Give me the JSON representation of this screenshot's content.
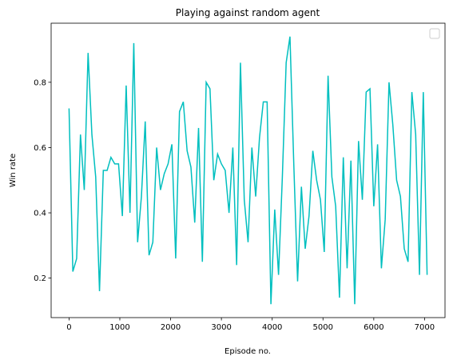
{
  "chart_data": {
    "type": "line",
    "title": "Playing against random agent",
    "xlabel": "Episode no.",
    "ylabel": "Win rate",
    "x": [
      0,
      75,
      150,
      225,
      300,
      375,
      450,
      525,
      600,
      675,
      750,
      825,
      900,
      975,
      1050,
      1125,
      1200,
      1275,
      1350,
      1425,
      1500,
      1575,
      1650,
      1725,
      1800,
      1875,
      1950,
      2025,
      2100,
      2175,
      2250,
      2325,
      2400,
      2475,
      2550,
      2625,
      2700,
      2775,
      2850,
      2925,
      3000,
      3075,
      3150,
      3225,
      3300,
      3375,
      3450,
      3525,
      3600,
      3675,
      3750,
      3825,
      3900,
      3975,
      4050,
      4125,
      4200,
      4275,
      4350,
      4425,
      4500,
      4575,
      4650,
      4725,
      4800,
      4875,
      4950,
      5025,
      5100,
      5175,
      5250,
      5325,
      5400,
      5475,
      5550,
      5625,
      5700,
      5775,
      5850,
      5925,
      6000,
      6075,
      6150,
      6225,
      6300,
      6375,
      6450,
      6525,
      6600,
      6675,
      6750,
      6825,
      6900,
      6975,
      7050
    ],
    "series": [
      {
        "color": "#00bfbf",
        "values": [
          0.72,
          0.22,
          0.26,
          0.64,
          0.47,
          0.89,
          0.64,
          0.51,
          0.16,
          0.53,
          0.53,
          0.57,
          0.55,
          0.55,
          0.39,
          0.79,
          0.4,
          0.92,
          0.31,
          0.45,
          0.68,
          0.27,
          0.31,
          0.6,
          0.47,
          0.52,
          0.55,
          0.61,
          0.26,
          0.71,
          0.74,
          0.59,
          0.54,
          0.37,
          0.66,
          0.25,
          0.8,
          0.78,
          0.5,
          0.58,
          0.55,
          0.53,
          0.4,
          0.6,
          0.24,
          0.86,
          0.44,
          0.31,
          0.6,
          0.45,
          0.63,
          0.74,
          0.74,
          0.12,
          0.41,
          0.21,
          0.51,
          0.86,
          0.94,
          0.55,
          0.19,
          0.48,
          0.29,
          0.39,
          0.59,
          0.5,
          0.44,
          0.28,
          0.82,
          0.51,
          0.42,
          0.14,
          0.57,
          0.23,
          0.56,
          0.12,
          0.62,
          0.44,
          0.77,
          0.78,
          0.42,
          0.61,
          0.23,
          0.38,
          0.8,
          0.67,
          0.5,
          0.45,
          0.29,
          0.25,
          0.77,
          0.64,
          0.21,
          0.77,
          0.21
        ]
      }
    ],
    "xlim": [
      -352.5,
      7402.5
    ],
    "xticks": [
      0,
      1000,
      2000,
      3000,
      4000,
      5000,
      6000,
      7000
    ],
    "ylim": [
      0.079,
      0.981
    ],
    "yticks": [
      0.2,
      0.4,
      0.6,
      0.8
    ]
  }
}
